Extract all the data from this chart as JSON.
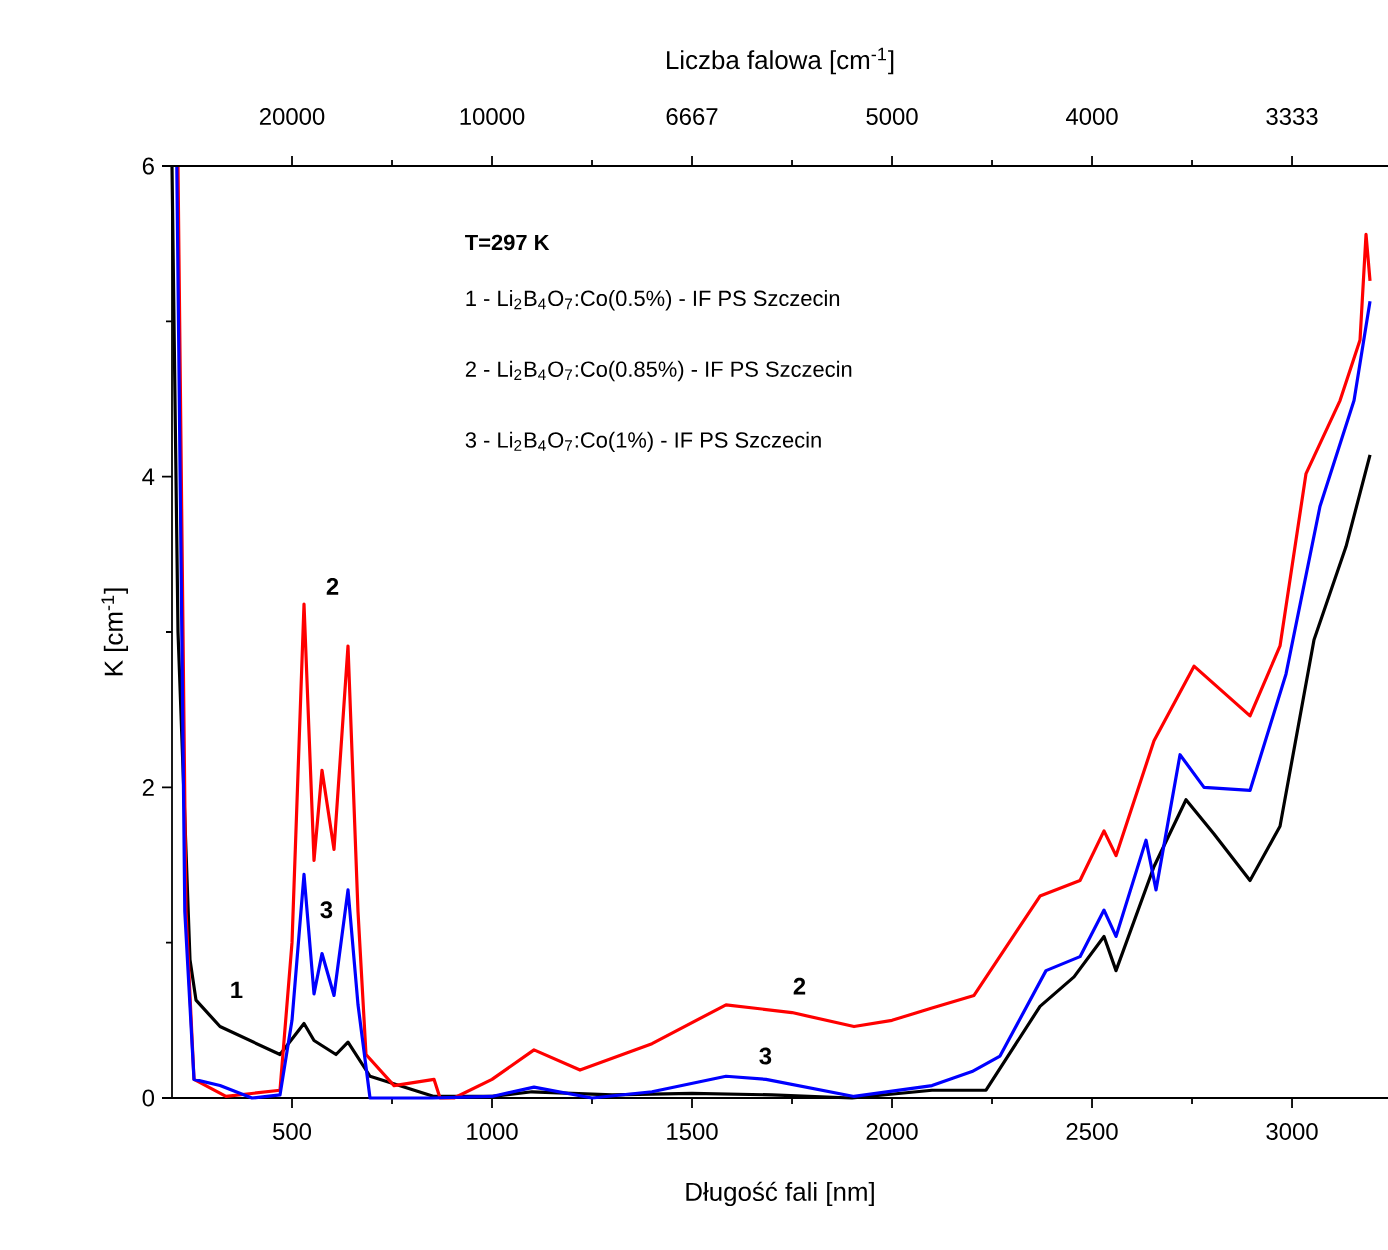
{
  "chart_data": {
    "type": "line",
    "xlabel": "Długość fali [nm]",
    "ylabel": "K [cm$^{-1}$]",
    "x2label": "Liczba falowa [cm$^{-1}$]",
    "xlim": [
      200,
      3240
    ],
    "ylim": [
      0,
      6
    ],
    "xticks": [
      500,
      1000,
      1500,
      2000,
      2500,
      3000
    ],
    "yticks": [
      0,
      2,
      4,
      6
    ],
    "grid": false,
    "marker": "none",
    "line_style": "solid",
    "annotations": [
      "T=297 K",
      "1 - Li$_{2}$B$_{4}$O$_{7}$:Co(0.5%) - IF PS Szczecin",
      "2 - Li$_{2}$B$_{4}$O$_{7}$:Co(0.85%) - IF PS Szczecin",
      "3 - Li$_{2}$B$_{4}$O$_{7}$:Co(1%) - IF PS Szczecin",
      "1",
      "2",
      "3",
      "2",
      "3",
      "20000",
      "10000",
      "6667",
      "5000",
      "4000",
      "3333"
    ],
    "series": [
      {
        "color": "#000000",
        "x": [
          200,
          215,
          230,
          245,
          260,
          320,
          470,
          530,
          555,
          610,
          640,
          695,
          855,
          1000,
          1100,
          1300,
          1500,
          1700,
          1900,
          2100,
          2235,
          2370,
          2455,
          2530,
          2560,
          2655,
          2735,
          2805,
          2895,
          2970,
          3055,
          3135,
          3195
        ],
        "values": [
          6,
          3.0,
          null,
          0.89,
          0.63,
          0.46,
          0.28,
          0.48,
          0.37,
          0.28,
          0.36,
          0.14,
          0.01,
          0.01,
          0.04,
          0.02,
          0.03,
          0.02,
          0.0,
          0.05,
          0.05,
          0.59,
          0.78,
          1.04,
          0.82,
          1.49,
          1.92,
          1.7,
          1.4,
          1.75,
          2.95,
          3.55,
          4.14
        ]
      },
      {
        "color": "#ff0000",
        "x": [
          215,
          235,
          255,
          335,
          470,
          500,
          530,
          555,
          575,
          605,
          640,
          665,
          685,
          755,
          855,
          870,
          905,
          1000,
          1105,
          1220,
          1400,
          1585,
          1750,
          1905,
          2000,
          2100,
          2205,
          2370,
          2470,
          2530,
          2560,
          2655,
          2755,
          2895,
          2970,
          3035,
          3120,
          3170,
          3185,
          3195
        ],
        "values": [
          6,
          1.2,
          0.12,
          0.01,
          0.05,
          1.0,
          3.18,
          1.53,
          2.11,
          1.6,
          2.91,
          1.2,
          0.28,
          0.08,
          0.12,
          0.0,
          0.0,
          0.12,
          0.31,
          0.18,
          0.35,
          0.6,
          0.55,
          0.46,
          0.5,
          0.58,
          0.66,
          1.3,
          1.4,
          1.72,
          1.56,
          2.3,
          2.78,
          2.46,
          2.91,
          4.02,
          4.49,
          4.88,
          5.56,
          5.26
        ]
      },
      {
        "color": "#0000ff",
        "x": [
          212,
          232,
          255,
          320,
          400,
          470,
          500,
          530,
          555,
          575,
          605,
          640,
          665,
          695,
          850,
          1000,
          1105,
          1250,
          1400,
          1585,
          1685,
          1905,
          2100,
          2200,
          2270,
          2385,
          2470,
          2530,
          2560,
          2635,
          2660,
          2720,
          2780,
          2895,
          2985,
          3070,
          3155,
          3195
        ],
        "values": [
          6,
          1.2,
          0.12,
          0.08,
          0.0,
          0.02,
          0.5,
          1.44,
          0.67,
          0.93,
          0.66,
          1.34,
          0.6,
          0.0,
          0.0,
          0.01,
          0.07,
          0.0,
          0.04,
          0.14,
          0.12,
          0.01,
          0.08,
          0.17,
          0.27,
          0.82,
          0.91,
          1.21,
          1.04,
          1.66,
          1.34,
          2.21,
          2.0,
          1.98,
          2.73,
          3.81,
          4.49,
          5.13
        ]
      }
    ]
  }
}
